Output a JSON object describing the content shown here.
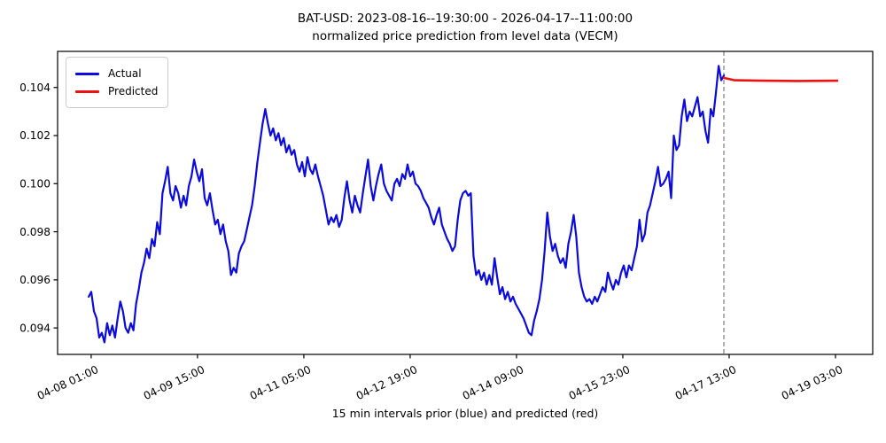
{
  "figure": {
    "title_line1": "BAT-USD: 2023-08-16--19:30:00 - 2026-04-17--11:00:00",
    "title_line2": "normalized price prediction from level data (VECM)",
    "xlabel": "15 min intervals prior (blue) and predicted (red)"
  },
  "legend": {
    "items": [
      {
        "label": "Actual",
        "color": "#0b0bdd"
      },
      {
        "label": "Predicted",
        "color": "#ee1111"
      }
    ]
  },
  "colors": {
    "actual_line": "#0b0bdd",
    "predicted_line": "#ee1111",
    "boundary_line": "#7f7f7f",
    "axis": "#000000",
    "background": "#ffffff"
  },
  "chart_data": {
    "type": "line",
    "title": "BAT-USD: 2023-08-16--19:30:00 - 2026-04-17--11:00:00 / normalized price prediction from level data (VECM)",
    "xlabel": "15 min intervals prior (blue) and predicted (red)",
    "ylabel": "",
    "grid": false,
    "legend_position": "upper left",
    "x_unit": "hours since 04-08 01:00",
    "xlim": [
      -12.0,
      279.3
    ],
    "ylim": [
      0.0929,
      0.1055
    ],
    "y_ticks": [
      0.094,
      0.096,
      0.098,
      0.1,
      0.102,
      0.104
    ],
    "x_ticks": [
      {
        "hours": 0,
        "label": "04-08 01:00"
      },
      {
        "hours": 38,
        "label": "04-09 15:00"
      },
      {
        "hours": 76,
        "label": "04-11 05:00"
      },
      {
        "hours": 114,
        "label": "04-12 19:00"
      },
      {
        "hours": 152,
        "label": "04-14 09:00"
      },
      {
        "hours": 190,
        "label": "04-15 23:00"
      },
      {
        "hours": 228,
        "label": "04-17 13:00"
      },
      {
        "hours": 266,
        "label": "04-19 03:00"
      }
    ],
    "prediction_boundary_hours": 226.1,
    "series": [
      {
        "name": "Actual",
        "color": "#0b0bdd",
        "x_start": -0.9,
        "x_step": 0.942,
        "values": [
          0.0953,
          0.0955,
          0.0947,
          0.0944,
          0.0936,
          0.0938,
          0.0934,
          0.0942,
          0.0937,
          0.0941,
          0.0936,
          0.0944,
          0.0951,
          0.0947,
          0.094,
          0.0938,
          0.0942,
          0.0939,
          0.095,
          0.0956,
          0.0963,
          0.0967,
          0.0973,
          0.0969,
          0.0977,
          0.0974,
          0.0984,
          0.0979,
          0.0996,
          0.1001,
          0.1007,
          0.0996,
          0.0993,
          0.0999,
          0.0996,
          0.099,
          0.0995,
          0.0991,
          0.0999,
          0.1003,
          0.101,
          0.1005,
          0.1001,
          0.1006,
          0.0994,
          0.0991,
          0.0996,
          0.0989,
          0.0983,
          0.0985,
          0.0979,
          0.0983,
          0.0976,
          0.0972,
          0.0962,
          0.0965,
          0.0963,
          0.0971,
          0.0974,
          0.0976,
          0.0981,
          0.0986,
          0.0991,
          0.0999,
          0.1009,
          0.1017,
          0.1025,
          0.1031,
          0.1025,
          0.102,
          0.1023,
          0.1018,
          0.1021,
          0.1016,
          0.1019,
          0.1013,
          0.1016,
          0.1012,
          0.1014,
          0.1008,
          0.1005,
          0.1009,
          0.1003,
          0.1011,
          0.1006,
          0.1004,
          0.1008,
          0.1003,
          0.0999,
          0.0995,
          0.0989,
          0.0983,
          0.0986,
          0.0984,
          0.0987,
          0.0982,
          0.0985,
          0.0994,
          0.1001,
          0.0993,
          0.0988,
          0.0995,
          0.0991,
          0.0988,
          0.0996,
          0.1003,
          0.101,
          0.0999,
          0.0993,
          0.0999,
          0.1004,
          0.1008,
          0.1,
          0.0997,
          0.0995,
          0.0993,
          0.1,
          0.1002,
          0.0999,
          0.1004,
          0.1002,
          0.1008,
          0.1003,
          0.1005,
          0.1,
          0.0999,
          0.0997,
          0.0994,
          0.0992,
          0.099,
          0.0986,
          0.0983,
          0.0987,
          0.099,
          0.0983,
          0.098,
          0.0977,
          0.0975,
          0.0972,
          0.0974,
          0.0985,
          0.0993,
          0.0996,
          0.0997,
          0.0995,
          0.0996,
          0.097,
          0.0962,
          0.0964,
          0.096,
          0.0963,
          0.0958,
          0.0962,
          0.0958,
          0.0969,
          0.0961,
          0.0954,
          0.0957,
          0.0952,
          0.0955,
          0.0951,
          0.0953,
          0.095,
          0.0948,
          0.0946,
          0.0944,
          0.0941,
          0.0938,
          0.0937,
          0.0943,
          0.0947,
          0.0952,
          0.096,
          0.0972,
          0.0988,
          0.0978,
          0.0972,
          0.0975,
          0.097,
          0.0967,
          0.0969,
          0.0965,
          0.0975,
          0.098,
          0.0987,
          0.0978,
          0.0963,
          0.0957,
          0.0953,
          0.0951,
          0.0952,
          0.095,
          0.0953,
          0.0951,
          0.0954,
          0.0957,
          0.0955,
          0.0963,
          0.0959,
          0.0956,
          0.096,
          0.0958,
          0.0963,
          0.0966,
          0.0961,
          0.0966,
          0.0964,
          0.0969,
          0.0974,
          0.0985,
          0.0976,
          0.0979,
          0.0988,
          0.0991,
          0.0996,
          0.1001,
          0.1007,
          0.0999,
          0.1,
          0.1002,
          0.1005,
          0.0994,
          0.102,
          0.1014,
          0.1016,
          0.1028,
          0.1035,
          0.1026,
          0.103,
          0.1028,
          0.1032,
          0.1036,
          0.1028,
          0.103,
          0.1022,
          0.1017,
          0.1031,
          0.1028,
          0.1038,
          0.1049,
          0.1043,
          0.1045
        ]
      },
      {
        "name": "Predicted",
        "color": "#ee1111",
        "points": [
          [
            226.1,
            0.1044
          ],
          [
            230.0,
            0.1043
          ],
          [
            240.0,
            0.10428
          ],
          [
            252.0,
            0.10427
          ],
          [
            266.6,
            0.10428
          ]
        ]
      }
    ]
  }
}
